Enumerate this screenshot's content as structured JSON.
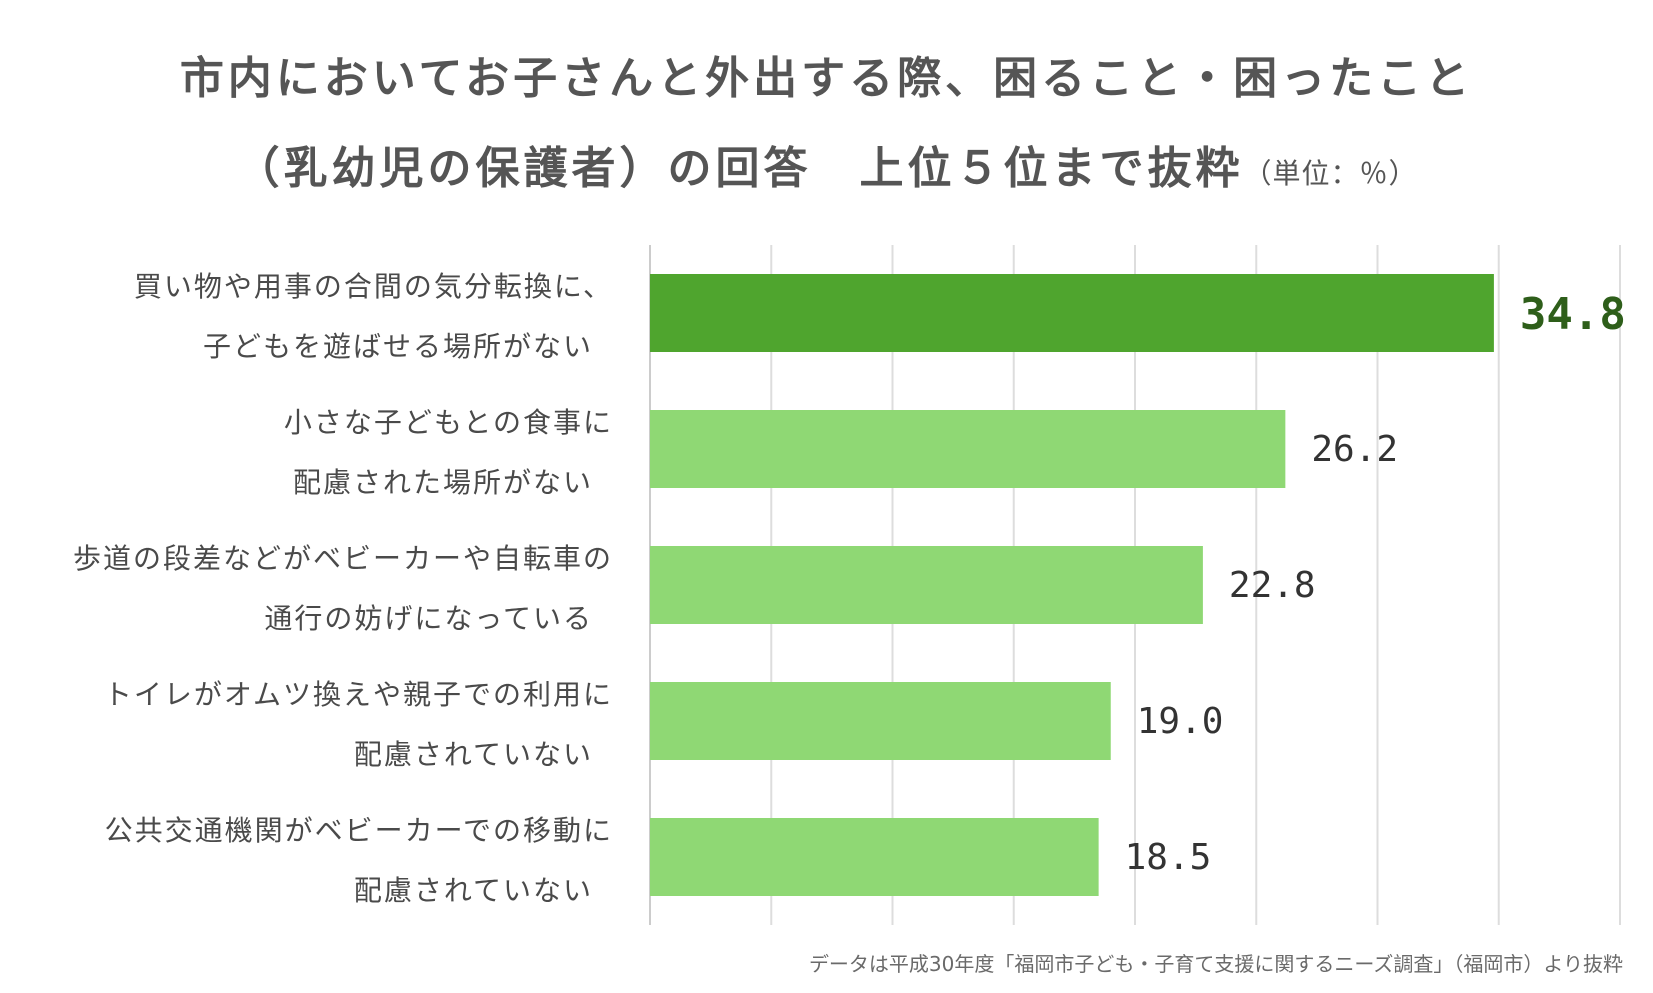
{
  "title": {
    "line1": "市内においてお子さんと外出する際、困ること・困ったこと",
    "line2": "（乳幼児の保護者）の回答　上位５位まで抜粋",
    "unit": "（単位：％）"
  },
  "source": "データは平成30年度「福岡市子ども・子育て支援に関するニーズ調査」（福岡市）より抜粋",
  "chart_data": {
    "type": "bar",
    "orientation": "horizontal",
    "categories": [
      [
        "買い物や用事の合間の気分転換に、",
        "子どもを遊ばせる場所がない"
      ],
      [
        "小さな子どもとの食事に",
        "配慮された場所がない"
      ],
      [
        "歩道の段差などがベビーカーや自転車の",
        "通行の妨げになっている"
      ],
      [
        "トイレがオムツ換えや親子での利用に",
        "配慮されていない"
      ],
      [
        "公共交通機関がベビーカーでの移動に",
        "配慮されていない"
      ]
    ],
    "values": [
      34.8,
      26.2,
      22.8,
      19.0,
      18.5
    ],
    "value_labels": [
      "34.8",
      "26.2",
      "22.8",
      "19.0",
      "18.5"
    ],
    "xlim": [
      0,
      40
    ],
    "grid": true,
    "colors": {
      "highlight_bar": "#4fa52e",
      "bar": "#8fd874",
      "highlight_label": "#2e5e1a",
      "label": "#333333",
      "grid": "#dddddd"
    }
  }
}
